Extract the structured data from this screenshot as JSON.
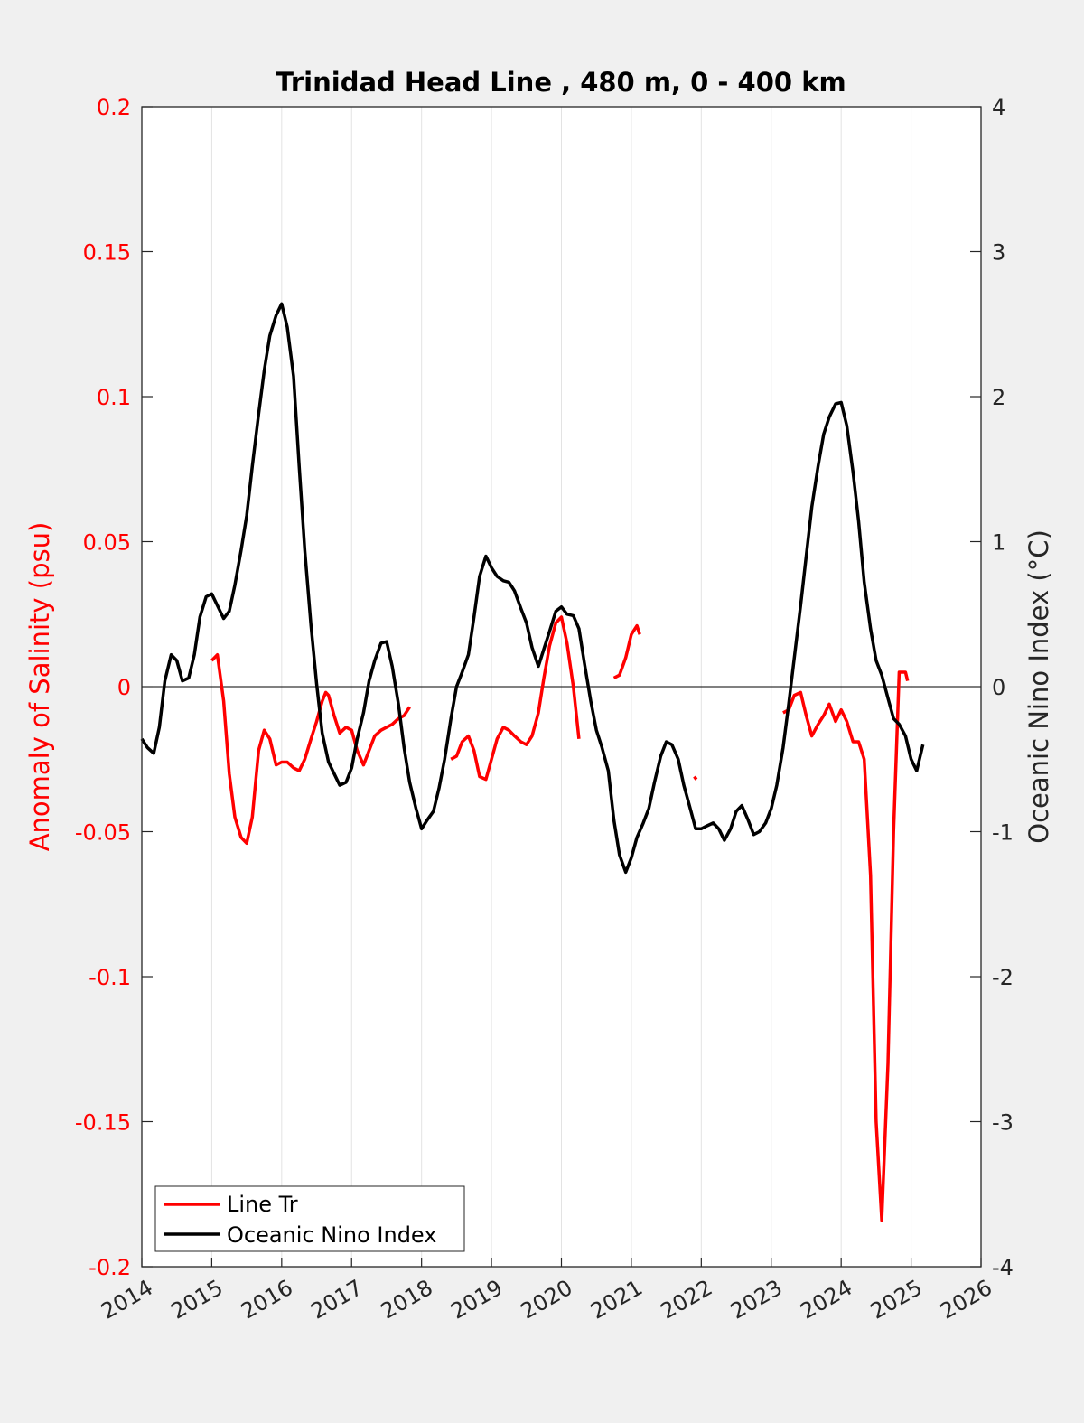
{
  "chart_data": {
    "type": "line",
    "title": "Trinidad Head Line , 480 m, 0 - 400 km",
    "ylabel_left": "Anomaly of Salinity (psu)",
    "ylabel_right": "Oceanic Nino Index (°C)",
    "xlim": [
      2014,
      2026
    ],
    "ylim_left": [
      -0.2,
      0.2
    ],
    "ylim_right": [
      -4,
      4
    ],
    "x_ticks": [
      "2014",
      "2015",
      "2016",
      "2017",
      "2018",
      "2019",
      "2020",
      "2021",
      "2022",
      "2023",
      "2024",
      "2025",
      "2026"
    ],
    "y_left_ticks": [
      "0.2",
      "0.15",
      "0.1",
      "0.05",
      "0",
      "-0.05",
      "-0.1",
      "-0.15",
      "-0.2"
    ],
    "y_right_ticks": [
      "4",
      "3",
      "2",
      "1",
      "0",
      "-1",
      "-2",
      "-3",
      "-4"
    ],
    "grid": "vertical",
    "legend_position": "bottom-left",
    "colors": {
      "salinity": "#ff0000",
      "oni": "#000000",
      "left_axis": "#ff0000",
      "right_axis": "#262626"
    },
    "series": [
      {
        "name": "Line Tr",
        "axis": "left",
        "segments": [
          [
            [
              2015.0,
              0.009
            ],
            [
              2015.08,
              0.011
            ],
            [
              2015.17,
              -0.005
            ],
            [
              2015.25,
              -0.03
            ],
            [
              2015.33,
              -0.045
            ],
            [
              2015.42,
              -0.052
            ],
            [
              2015.5,
              -0.054
            ],
            [
              2015.58,
              -0.045
            ],
            [
              2015.67,
              -0.022
            ],
            [
              2015.75,
              -0.015
            ],
            [
              2015.83,
              -0.018
            ],
            [
              2015.92,
              -0.027
            ],
            [
              2016.0,
              -0.026
            ],
            [
              2016.08,
              -0.026
            ],
            [
              2016.17,
              -0.028
            ],
            [
              2016.25,
              -0.029
            ],
            [
              2016.33,
              -0.025
            ],
            [
              2016.42,
              -0.018
            ],
            [
              2016.5,
              -0.012
            ],
            [
              2016.58,
              -0.005
            ],
            [
              2016.63,
              -0.002
            ],
            [
              2016.67,
              -0.003
            ],
            [
              2016.75,
              -0.01
            ],
            [
              2016.83,
              -0.016
            ],
            [
              2016.92,
              -0.014
            ],
            [
              2017.0,
              -0.015
            ],
            [
              2017.08,
              -0.022
            ],
            [
              2017.17,
              -0.027
            ],
            [
              2017.25,
              -0.022
            ],
            [
              2017.33,
              -0.017
            ],
            [
              2017.42,
              -0.015
            ],
            [
              2017.5,
              -0.014
            ],
            [
              2017.58,
              -0.013
            ],
            [
              2017.67,
              -0.011
            ],
            [
              2017.75,
              -0.01
            ],
            [
              2017.83,
              -0.007
            ]
          ],
          [
            [
              2018.42,
              -0.025
            ],
            [
              2018.5,
              -0.024
            ],
            [
              2018.58,
              -0.019
            ],
            [
              2018.67,
              -0.017
            ],
            [
              2018.75,
              -0.022
            ],
            [
              2018.83,
              -0.031
            ],
            [
              2018.92,
              -0.032
            ],
            [
              2019.0,
              -0.025
            ],
            [
              2019.08,
              -0.018
            ],
            [
              2019.17,
              -0.014
            ],
            [
              2019.25,
              -0.015
            ],
            [
              2019.33,
              -0.017
            ],
            [
              2019.42,
              -0.019
            ],
            [
              2019.5,
              -0.02
            ],
            [
              2019.58,
              -0.017
            ],
            [
              2019.67,
              -0.009
            ],
            [
              2019.75,
              0.003
            ],
            [
              2019.83,
              0.014
            ],
            [
              2019.92,
              0.022
            ],
            [
              2020.0,
              0.024
            ],
            [
              2020.08,
              0.015
            ],
            [
              2020.17,
              0.0
            ],
            [
              2020.25,
              -0.018
            ]
          ],
          [
            [
              2020.75,
              0.003
            ],
            [
              2020.83,
              0.004
            ],
            [
              2020.92,
              0.01
            ],
            [
              2021.0,
              0.018
            ],
            [
              2021.08,
              0.021
            ],
            [
              2021.12,
              0.018
            ]
          ],
          [
            [
              2021.9,
              -0.031
            ],
            [
              2021.93,
              -0.032
            ]
          ],
          [
            [
              2023.17,
              -0.009
            ],
            [
              2023.25,
              -0.008
            ],
            [
              2023.33,
              -0.003
            ],
            [
              2023.42,
              -0.002
            ],
            [
              2023.5,
              -0.01
            ],
            [
              2023.58,
              -0.017
            ],
            [
              2023.67,
              -0.013
            ],
            [
              2023.75,
              -0.01
            ],
            [
              2023.83,
              -0.006
            ],
            [
              2023.92,
              -0.012
            ],
            [
              2024.0,
              -0.008
            ],
            [
              2024.08,
              -0.012
            ],
            [
              2024.17,
              -0.019
            ],
            [
              2024.25,
              -0.019
            ],
            [
              2024.33,
              -0.025
            ],
            [
              2024.42,
              -0.065
            ],
            [
              2024.5,
              -0.15
            ],
            [
              2024.58,
              -0.184
            ],
            [
              2024.67,
              -0.13
            ],
            [
              2024.75,
              -0.05
            ],
            [
              2024.83,
              0.005
            ],
            [
              2024.92,
              0.005
            ],
            [
              2024.95,
              0.002
            ]
          ]
        ]
      },
      {
        "name": "Oceanic Nino Index",
        "axis": "right",
        "segments": [
          [
            [
              2014.0,
              -0.36
            ],
            [
              2014.08,
              -0.42
            ],
            [
              2014.17,
              -0.46
            ],
            [
              2014.25,
              -0.28
            ],
            [
              2014.33,
              0.04
            ],
            [
              2014.42,
              0.22
            ],
            [
              2014.5,
              0.18
            ],
            [
              2014.58,
              0.04
            ],
            [
              2014.67,
              0.06
            ],
            [
              2014.75,
              0.22
            ],
            [
              2014.83,
              0.48
            ],
            [
              2014.92,
              0.62
            ],
            [
              2015.0,
              0.64
            ],
            [
              2015.08,
              0.56
            ],
            [
              2015.17,
              0.47
            ],
            [
              2015.25,
              0.52
            ],
            [
              2015.33,
              0.7
            ],
            [
              2015.42,
              0.94
            ],
            [
              2015.5,
              1.18
            ],
            [
              2015.58,
              1.52
            ],
            [
              2015.67,
              1.88
            ],
            [
              2015.75,
              2.18
            ],
            [
              2015.83,
              2.42
            ],
            [
              2015.92,
              2.56
            ],
            [
              2016.0,
              2.64
            ],
            [
              2016.08,
              2.48
            ],
            [
              2016.17,
              2.14
            ],
            [
              2016.25,
              1.52
            ],
            [
              2016.33,
              0.94
            ],
            [
              2016.42,
              0.42
            ],
            [
              2016.5,
              0.02
            ],
            [
              2016.58,
              -0.32
            ],
            [
              2016.67,
              -0.52
            ],
            [
              2016.75,
              -0.6
            ],
            [
              2016.83,
              -0.68
            ],
            [
              2016.92,
              -0.66
            ],
            [
              2017.0,
              -0.56
            ],
            [
              2017.08,
              -0.36
            ],
            [
              2017.17,
              -0.18
            ],
            [
              2017.25,
              0.04
            ],
            [
              2017.33,
              0.18
            ],
            [
              2017.42,
              0.3
            ],
            [
              2017.5,
              0.31
            ],
            [
              2017.58,
              0.14
            ],
            [
              2017.67,
              -0.12
            ],
            [
              2017.75,
              -0.42
            ],
            [
              2017.83,
              -0.66
            ],
            [
              2017.92,
              -0.84
            ],
            [
              2018.0,
              -0.98
            ],
            [
              2018.08,
              -0.92
            ],
            [
              2018.17,
              -0.86
            ],
            [
              2018.25,
              -0.7
            ],
            [
              2018.33,
              -0.5
            ],
            [
              2018.42,
              -0.22
            ],
            [
              2018.5,
              0.0
            ],
            [
              2018.58,
              0.1
            ],
            [
              2018.67,
              0.22
            ],
            [
              2018.75,
              0.48
            ],
            [
              2018.83,
              0.76
            ],
            [
              2018.92,
              0.9
            ],
            [
              2019.0,
              0.82
            ],
            [
              2019.08,
              0.76
            ],
            [
              2019.17,
              0.73
            ],
            [
              2019.25,
              0.72
            ],
            [
              2019.33,
              0.66
            ],
            [
              2019.42,
              0.54
            ],
            [
              2019.5,
              0.44
            ],
            [
              2019.58,
              0.27
            ],
            [
              2019.67,
              0.14
            ],
            [
              2019.75,
              0.26
            ],
            [
              2019.83,
              0.38
            ],
            [
              2019.92,
              0.52
            ],
            [
              2020.0,
              0.55
            ],
            [
              2020.08,
              0.5
            ],
            [
              2020.17,
              0.49
            ],
            [
              2020.25,
              0.4
            ],
            [
              2020.33,
              0.16
            ],
            [
              2020.42,
              -0.1
            ],
            [
              2020.5,
              -0.3
            ],
            [
              2020.58,
              -0.42
            ],
            [
              2020.67,
              -0.58
            ],
            [
              2020.75,
              -0.92
            ],
            [
              2020.83,
              -1.16
            ],
            [
              2020.92,
              -1.28
            ],
            [
              2021.0,
              -1.18
            ],
            [
              2021.08,
              -1.04
            ],
            [
              2021.17,
              -0.94
            ],
            [
              2021.25,
              -0.84
            ],
            [
              2021.33,
              -0.66
            ],
            [
              2021.42,
              -0.48
            ],
            [
              2021.5,
              -0.38
            ],
            [
              2021.58,
              -0.4
            ],
            [
              2021.67,
              -0.5
            ],
            [
              2021.75,
              -0.68
            ],
            [
              2021.83,
              -0.82
            ],
            [
              2021.92,
              -0.98
            ],
            [
              2022.0,
              -0.98
            ],
            [
              2022.08,
              -0.96
            ],
            [
              2022.17,
              -0.94
            ],
            [
              2022.25,
              -0.98
            ],
            [
              2022.33,
              -1.06
            ],
            [
              2022.42,
              -0.98
            ],
            [
              2022.5,
              -0.86
            ],
            [
              2022.58,
              -0.82
            ],
            [
              2022.67,
              -0.92
            ],
            [
              2022.75,
              -1.02
            ],
            [
              2022.83,
              -1.0
            ],
            [
              2022.92,
              -0.94
            ],
            [
              2023.0,
              -0.84
            ],
            [
              2023.08,
              -0.68
            ],
            [
              2023.17,
              -0.42
            ],
            [
              2023.25,
              -0.12
            ],
            [
              2023.33,
              0.2
            ],
            [
              2023.42,
              0.56
            ],
            [
              2023.5,
              0.9
            ],
            [
              2023.58,
              1.24
            ],
            [
              2023.67,
              1.52
            ],
            [
              2023.75,
              1.74
            ],
            [
              2023.83,
              1.86
            ],
            [
              2023.92,
              1.95
            ],
            [
              2024.0,
              1.96
            ],
            [
              2024.08,
              1.8
            ],
            [
              2024.17,
              1.48
            ],
            [
              2024.25,
              1.14
            ],
            [
              2024.33,
              0.72
            ],
            [
              2024.42,
              0.4
            ],
            [
              2024.5,
              0.18
            ],
            [
              2024.58,
              0.08
            ],
            [
              2024.67,
              -0.08
            ],
            [
              2024.75,
              -0.22
            ],
            [
              2024.83,
              -0.26
            ],
            [
              2024.92,
              -0.34
            ],
            [
              2025.0,
              -0.5
            ],
            [
              2025.08,
              -0.58
            ],
            [
              2025.17,
              -0.4
            ]
          ]
        ]
      }
    ]
  }
}
